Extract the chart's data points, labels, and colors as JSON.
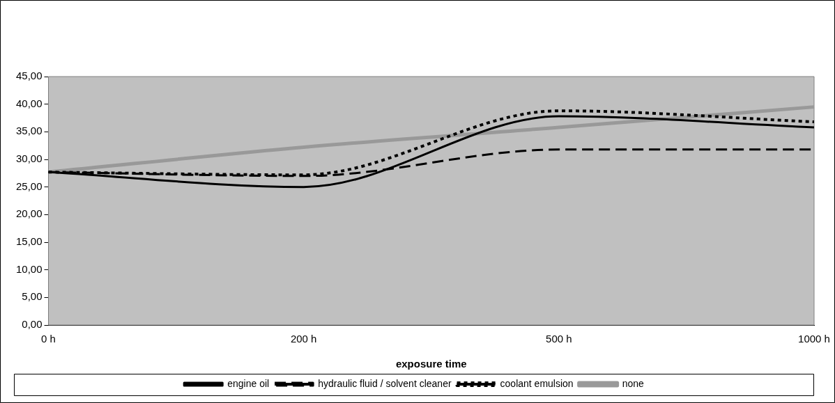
{
  "chart_data": {
    "type": "line",
    "xlabel": "exposure time",
    "categories": [
      "0 h",
      "200 h",
      "500 h",
      "1000 h"
    ],
    "series": [
      {
        "name": "engine oil",
        "color": "#000000",
        "line_style": "solid",
        "values": [
          27.7,
          25.0,
          37.8,
          35.8
        ]
      },
      {
        "name": "hydraulic fluid / solvent cleaner",
        "color": "#000000",
        "line_style": "dashed",
        "values": [
          27.7,
          27.0,
          31.8,
          31.8
        ]
      },
      {
        "name": "coolant emulsion",
        "color": "#000000",
        "line_style": "dotted",
        "values": [
          27.7,
          27.2,
          38.8,
          36.8
        ]
      },
      {
        "name": "none",
        "color": "#999999",
        "line_style": "solid",
        "values": [
          27.7,
          32.2,
          35.8,
          39.5
        ]
      }
    ],
    "ylim": [
      0,
      45
    ],
    "yticks": [
      {
        "value": 0,
        "label": "0,00"
      },
      {
        "value": 5,
        "label": "5,00"
      },
      {
        "value": 10,
        "label": "10,00"
      },
      {
        "value": 15,
        "label": "15,00"
      },
      {
        "value": 20,
        "label": "20,00"
      },
      {
        "value": 25,
        "label": "25,00"
      },
      {
        "value": 30,
        "label": "30,00"
      },
      {
        "value": 35,
        "label": "35,00"
      },
      {
        "value": 40,
        "label": "40,00"
      },
      {
        "value": 45,
        "label": "45,00"
      }
    ],
    "grid": false,
    "legend": "bottom",
    "marker": "none"
  }
}
